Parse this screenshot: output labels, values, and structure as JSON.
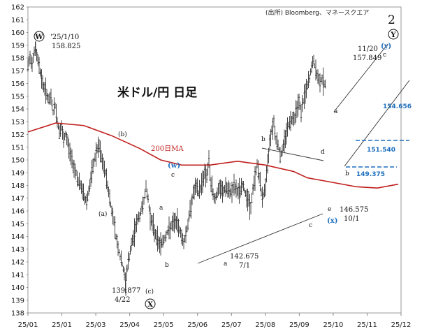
{
  "source": "(出所) Bloomberg、マネースクエア",
  "title": "米ドル/円 日足",
  "wave_number": "2",
  "ma_label": "200日MA",
  "colors": {
    "ma": "#c0201e",
    "blue": "#1f6fbf",
    "candle": "#333333",
    "frame": "#888888"
  },
  "chart_data": {
    "type": "candlestick",
    "ylim": [
      138,
      162
    ],
    "yticks": [
      138,
      139,
      140,
      141,
      142,
      143,
      144,
      145,
      146,
      147,
      148,
      149,
      150,
      151,
      152,
      153,
      154,
      155,
      156,
      157,
      158,
      159,
      160,
      161,
      162
    ],
    "xtick_labels": [
      "25/01",
      "25/01",
      "25/03",
      "25/04",
      "25/05",
      "25/06",
      "25/07",
      "25/08",
      "25/09",
      "25/10",
      "25/11",
      "25/12"
    ],
    "series_close": [
      [
        0,
        157.3
      ],
      [
        3,
        158.0
      ],
      [
        6,
        157.6
      ],
      [
        9,
        158.6
      ],
      [
        11,
        158.8
      ],
      [
        13,
        158.0
      ],
      [
        16,
        157.5
      ],
      [
        18,
        156.8
      ],
      [
        21,
        156.0
      ],
      [
        24,
        155.6
      ],
      [
        27,
        155.2
      ],
      [
        30,
        154.6
      ],
      [
        33,
        154.9
      ],
      [
        36,
        153.8
      ],
      [
        39,
        154.3
      ],
      [
        42,
        153.0
      ],
      [
        45,
        152.2
      ],
      [
        48,
        152.6
      ],
      [
        51,
        151.5
      ],
      [
        54,
        152.0
      ],
      [
        57,
        151.4
      ],
      [
        60,
        150.6
      ],
      [
        63,
        150.0
      ],
      [
        66,
        149.4
      ],
      [
        69,
        149.0
      ],
      [
        72,
        148.3
      ],
      [
        75,
        148.0
      ],
      [
        78,
        147.6
      ],
      [
        81,
        147.0
      ],
      [
        84,
        146.8
      ],
      [
        87,
        147.6
      ],
      [
        90,
        148.4
      ],
      [
        93,
        149.4
      ],
      [
        96,
        150.2
      ],
      [
        99,
        150.8
      ],
      [
        102,
        151.0
      ],
      [
        105,
        150.2
      ],
      [
        108,
        149.5
      ],
      [
        111,
        149.0
      ],
      [
        114,
        148.0
      ],
      [
        117,
        147.0
      ],
      [
        120,
        146.0
      ],
      [
        123,
        145.3
      ],
      [
        126,
        144.0
      ],
      [
        129,
        143.2
      ],
      [
        132,
        142.4
      ],
      [
        135,
        141.8
      ],
      [
        138,
        141.0
      ],
      [
        140,
        140.0
      ],
      [
        142,
        141.5
      ],
      [
        145,
        142.4
      ],
      [
        148,
        143.3
      ],
      [
        151,
        143.9
      ],
      [
        154,
        144.8
      ],
      [
        157,
        145.3
      ],
      [
        160,
        145.6
      ],
      [
        163,
        146.2
      ],
      [
        166,
        146.9
      ],
      [
        169,
        147.8
      ],
      [
        172,
        146.9
      ],
      [
        175,
        145.6
      ],
      [
        178,
        145.0
      ],
      [
        181,
        144.4
      ],
      [
        184,
        144.0
      ],
      [
        187,
        143.5
      ],
      [
        190,
        143.4
      ],
      [
        193,
        143.6
      ],
      [
        196,
        143.9
      ],
      [
        199,
        144.3
      ],
      [
        202,
        144.5
      ],
      [
        205,
        144.8
      ],
      [
        208,
        145.0
      ],
      [
        211,
        145.2
      ],
      [
        214,
        145.0
      ],
      [
        217,
        144.6
      ],
      [
        220,
        144.0
      ],
      [
        223,
        143.5
      ],
      [
        226,
        144.2
      ],
      [
        229,
        145.0
      ],
      [
        232,
        146.0
      ],
      [
        235,
        147.0
      ],
      [
        238,
        147.6
      ],
      [
        241,
        147.9
      ],
      [
        244,
        147.4
      ],
      [
        247,
        147.8
      ],
      [
        250,
        148.4
      ],
      [
        253,
        149.0
      ],
      [
        256,
        148.8
      ],
      [
        259,
        149.8
      ],
      [
        262,
        148.2
      ],
      [
        265,
        147.3
      ],
      [
        268,
        147.0
      ],
      [
        271,
        147.4
      ],
      [
        274,
        147.8
      ],
      [
        277,
        147.6
      ],
      [
        280,
        147.5
      ],
      [
        283,
        147.9
      ],
      [
        286,
        147.6
      ],
      [
        289,
        147.4
      ],
      [
        292,
        147.6
      ],
      [
        295,
        147.9
      ],
      [
        298,
        147.6
      ],
      [
        301,
        147.5
      ],
      [
        304,
        147.6
      ],
      [
        307,
        148.1
      ],
      [
        310,
        147.6
      ],
      [
        313,
        147.2
      ],
      [
        316,
        146.8
      ],
      [
        319,
        146.2
      ],
      [
        322,
        147.7
      ],
      [
        325,
        148.6
      ],
      [
        328,
        149.7
      ],
      [
        331,
        148.7
      ],
      [
        334,
        147.4
      ],
      [
        337,
        147.2
      ],
      [
        340,
        148.0
      ],
      [
        343,
        149.5
      ],
      [
        346,
        151.5
      ],
      [
        349,
        152.4
      ],
      [
        352,
        153.0
      ],
      [
        355,
        151.6
      ],
      [
        358,
        151.3
      ],
      [
        361,
        150.3
      ],
      [
        364,
        150.7
      ],
      [
        367,
        151.5
      ],
      [
        370,
        152.2
      ],
      [
        373,
        152.8
      ],
      [
        376,
        153.0
      ],
      [
        379,
        153.4
      ],
      [
        382,
        153.3
      ],
      [
        385,
        154.2
      ],
      [
        388,
        154.6
      ],
      [
        391,
        153.8
      ],
      [
        394,
        154.6
      ],
      [
        397,
        155.3
      ],
      [
        400,
        155.8
      ],
      [
        403,
        156.4
      ],
      [
        406,
        157.3
      ],
      [
        409,
        157.8
      ],
      [
        412,
        157.0
      ],
      [
        415,
        156.4
      ],
      [
        418,
        156.2
      ],
      [
        421,
        156.4
      ],
      [
        424,
        156.0
      ],
      [
        427,
        155.9
      ]
    ],
    "ma200": [
      [
        0,
        152.2
      ],
      [
        40,
        152.9
      ],
      [
        80,
        152.7
      ],
      [
        120,
        151.9
      ],
      [
        160,
        150.9
      ],
      [
        190,
        150.0
      ],
      [
        220,
        149.6
      ],
      [
        260,
        149.6
      ],
      [
        300,
        149.9
      ],
      [
        340,
        149.6
      ],
      [
        380,
        149.1
      ],
      [
        400,
        148.6
      ],
      [
        430,
        148.3
      ],
      [
        470,
        147.9
      ],
      [
        500,
        147.8
      ],
      [
        530,
        148.1
      ]
    ],
    "annotations": {
      "w_date": "'25/1/10",
      "w_value": "158.825",
      "x_date_value": "139.877",
      "x_date": "4/22",
      "low_july_value": "142.675",
      "low_july_date": "7/1",
      "oct_value": "146.575",
      "oct_date": "10/1",
      "nov_date": "11/20",
      "nov_value": "157.849",
      "level1": "154.656",
      "level2": "151.540",
      "level3": "149.375",
      "label_w_circle": "W",
      "label_x_circle": "X",
      "label_y_circle": "Y",
      "label_w_blue": "(w)",
      "label_x_blue": "(x)",
      "label_y_blue": "(y)",
      "sub_a": "a",
      "sub_b": "b",
      "sub_c": "c",
      "sub_d": "d",
      "sub_e": "e",
      "paren_a": "(a)",
      "paren_b": "(b)",
      "paren_c": "(c)"
    }
  }
}
